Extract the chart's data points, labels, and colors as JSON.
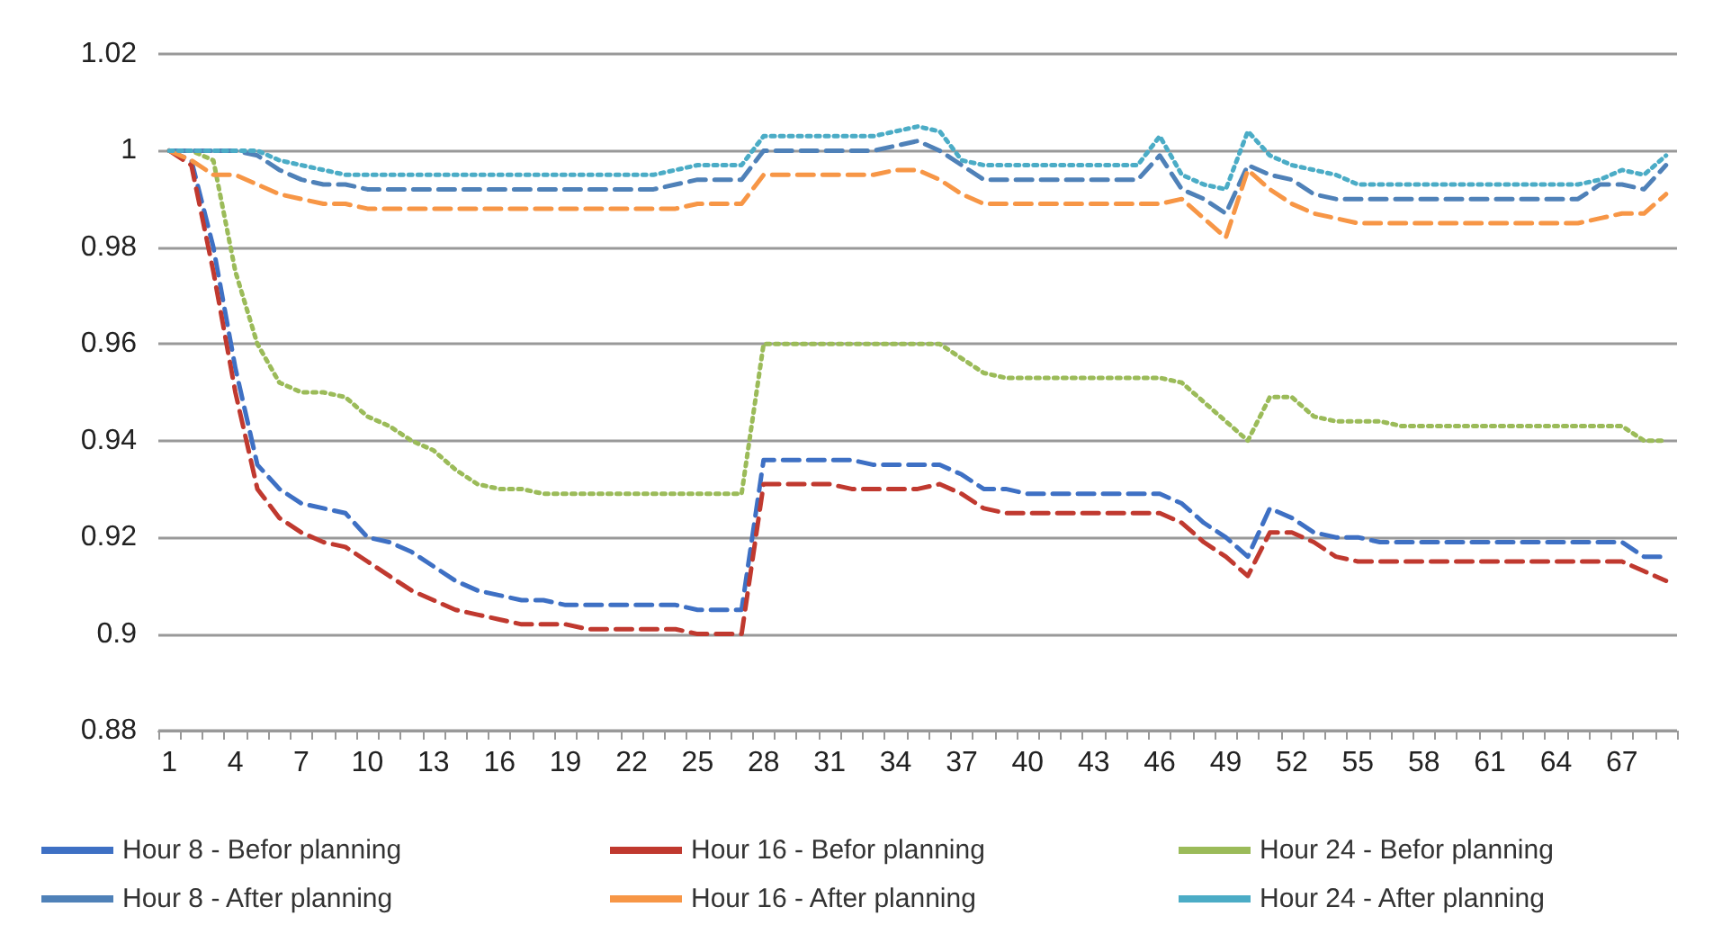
{
  "chart_data": {
    "type": "line",
    "categories": [
      "1",
      null,
      null,
      "4",
      null,
      null,
      "7",
      null,
      null,
      "10",
      null,
      null,
      "13",
      null,
      null,
      "16",
      null,
      null,
      "19",
      null,
      null,
      "22",
      null,
      null,
      "25",
      null,
      null,
      "28",
      null,
      null,
      "31",
      null,
      null,
      "34",
      null,
      null,
      "37",
      null,
      null,
      "40",
      null,
      null,
      "43",
      null,
      null,
      "46",
      null,
      null,
      "49",
      null,
      null,
      "52",
      null,
      null,
      "55",
      null,
      null,
      "58",
      null,
      null,
      "61",
      null,
      null,
      "64",
      null,
      null,
      "67",
      null,
      null
    ],
    "ylim": [
      0.88,
      1.02
    ],
    "yticks": [
      0.88,
      0.9,
      0.92,
      0.94,
      0.96,
      0.98,
      1,
      1.02
    ],
    "grid": "y",
    "legend": "bottom",
    "marker": "none",
    "series": [
      {
        "name": "Hour 8 - Befor planning",
        "color": "#3e70c4",
        "line_style": "dashed",
        "values": [
          1.0,
          0.998,
          0.98,
          0.955,
          0.935,
          0.93,
          0.927,
          0.926,
          0.925,
          0.92,
          0.919,
          0.917,
          0.914,
          0.911,
          0.909,
          0.908,
          0.907,
          0.907,
          0.906,
          0.906,
          0.906,
          0.906,
          0.906,
          0.906,
          0.905,
          0.905,
          0.905,
          0.936,
          0.936,
          0.936,
          0.936,
          0.936,
          0.935,
          0.935,
          0.935,
          0.935,
          0.933,
          0.93,
          0.93,
          0.929,
          0.929,
          0.929,
          0.929,
          0.929,
          0.929,
          0.929,
          0.927,
          0.923,
          0.92,
          0.916,
          0.926,
          0.924,
          0.921,
          0.92,
          0.92,
          0.919,
          0.919,
          0.919,
          0.919,
          0.919,
          0.919,
          0.919,
          0.919,
          0.919,
          0.919,
          0.919,
          0.919,
          0.916,
          0.916
        ]
      },
      {
        "name": "Hour 16 - Befor planning",
        "color": "#c0392f",
        "line_style": "dashed",
        "values": [
          1.0,
          0.997,
          0.975,
          0.95,
          0.93,
          0.924,
          0.921,
          0.919,
          0.918,
          0.915,
          0.912,
          0.909,
          0.907,
          0.905,
          0.904,
          0.903,
          0.902,
          0.902,
          0.902,
          0.901,
          0.901,
          0.901,
          0.901,
          0.901,
          0.9,
          0.9,
          0.9,
          0.931,
          0.931,
          0.931,
          0.931,
          0.93,
          0.93,
          0.93,
          0.93,
          0.931,
          0.929,
          0.926,
          0.925,
          0.925,
          0.925,
          0.925,
          0.925,
          0.925,
          0.925,
          0.925,
          0.923,
          0.919,
          0.916,
          0.912,
          0.921,
          0.921,
          0.919,
          0.916,
          0.915,
          0.915,
          0.915,
          0.915,
          0.915,
          0.915,
          0.915,
          0.915,
          0.915,
          0.915,
          0.915,
          0.915,
          0.915,
          0.913,
          0.911
        ]
      },
      {
        "name": "Hour 24 - Befor planning",
        "color": "#9bbb59",
        "line_style": "dotted",
        "values": [
          1.0,
          1.0,
          0.998,
          0.975,
          0.96,
          0.952,
          0.95,
          0.95,
          0.949,
          0.945,
          0.943,
          0.94,
          0.938,
          0.934,
          0.931,
          0.93,
          0.93,
          0.929,
          0.929,
          0.929,
          0.929,
          0.929,
          0.929,
          0.929,
          0.929,
          0.929,
          0.929,
          0.96,
          0.96,
          0.96,
          0.96,
          0.96,
          0.96,
          0.96,
          0.96,
          0.96,
          0.957,
          0.954,
          0.953,
          0.953,
          0.953,
          0.953,
          0.953,
          0.953,
          0.953,
          0.953,
          0.952,
          0.948,
          0.944,
          0.94,
          0.949,
          0.949,
          0.945,
          0.944,
          0.944,
          0.944,
          0.943,
          0.943,
          0.943,
          0.943,
          0.943,
          0.943,
          0.943,
          0.943,
          0.943,
          0.943,
          0.943,
          0.94,
          0.94
        ]
      },
      {
        "name": "Hour 8 - After planning",
        "color": "#4f81b8",
        "line_style": "dashed",
        "values": [
          1.0,
          1.0,
          1.0,
          1.0,
          0.999,
          0.996,
          0.994,
          0.993,
          0.993,
          0.992,
          0.992,
          0.992,
          0.992,
          0.992,
          0.992,
          0.992,
          0.992,
          0.992,
          0.992,
          0.992,
          0.992,
          0.992,
          0.992,
          0.993,
          0.994,
          0.994,
          0.994,
          1.0,
          1.0,
          1.0,
          1.0,
          1.0,
          1.0,
          1.001,
          1.002,
          1.0,
          0.997,
          0.994,
          0.994,
          0.994,
          0.994,
          0.994,
          0.994,
          0.994,
          0.994,
          0.999,
          0.992,
          0.99,
          0.987,
          0.997,
          0.995,
          0.994,
          0.991,
          0.99,
          0.99,
          0.99,
          0.99,
          0.99,
          0.99,
          0.99,
          0.99,
          0.99,
          0.99,
          0.99,
          0.99,
          0.993,
          0.993,
          0.992,
          0.997
        ]
      },
      {
        "name": "Hour 16 - After planning",
        "color": "#f79646",
        "line_style": "dashed",
        "values": [
          1.0,
          0.998,
          0.995,
          0.995,
          0.993,
          0.991,
          0.99,
          0.989,
          0.989,
          0.988,
          0.988,
          0.988,
          0.988,
          0.988,
          0.988,
          0.988,
          0.988,
          0.988,
          0.988,
          0.988,
          0.988,
          0.988,
          0.988,
          0.988,
          0.989,
          0.989,
          0.989,
          0.995,
          0.995,
          0.995,
          0.995,
          0.995,
          0.995,
          0.996,
          0.996,
          0.994,
          0.991,
          0.989,
          0.989,
          0.989,
          0.989,
          0.989,
          0.989,
          0.989,
          0.989,
          0.989,
          0.99,
          0.986,
          0.982,
          0.996,
          0.992,
          0.989,
          0.987,
          0.986,
          0.985,
          0.985,
          0.985,
          0.985,
          0.985,
          0.985,
          0.985,
          0.985,
          0.985,
          0.985,
          0.985,
          0.986,
          0.987,
          0.987,
          0.991
        ]
      },
      {
        "name": "Hour 24 - After planning",
        "color": "#4bacc6",
        "line_style": "dotted",
        "values": [
          1.0,
          1.0,
          1.0,
          1.0,
          1.0,
          0.998,
          0.997,
          0.996,
          0.995,
          0.995,
          0.995,
          0.995,
          0.995,
          0.995,
          0.995,
          0.995,
          0.995,
          0.995,
          0.995,
          0.995,
          0.995,
          0.995,
          0.995,
          0.996,
          0.997,
          0.997,
          0.997,
          1.003,
          1.003,
          1.003,
          1.003,
          1.003,
          1.003,
          1.004,
          1.005,
          1.004,
          0.998,
          0.997,
          0.997,
          0.997,
          0.997,
          0.997,
          0.997,
          0.997,
          0.997,
          1.003,
          0.995,
          0.993,
          0.992,
          1.004,
          0.999,
          0.997,
          0.996,
          0.995,
          0.993,
          0.993,
          0.993,
          0.993,
          0.993,
          0.993,
          0.993,
          0.993,
          0.993,
          0.993,
          0.993,
          0.994,
          0.996,
          0.995,
          0.999
        ]
      }
    ]
  }
}
